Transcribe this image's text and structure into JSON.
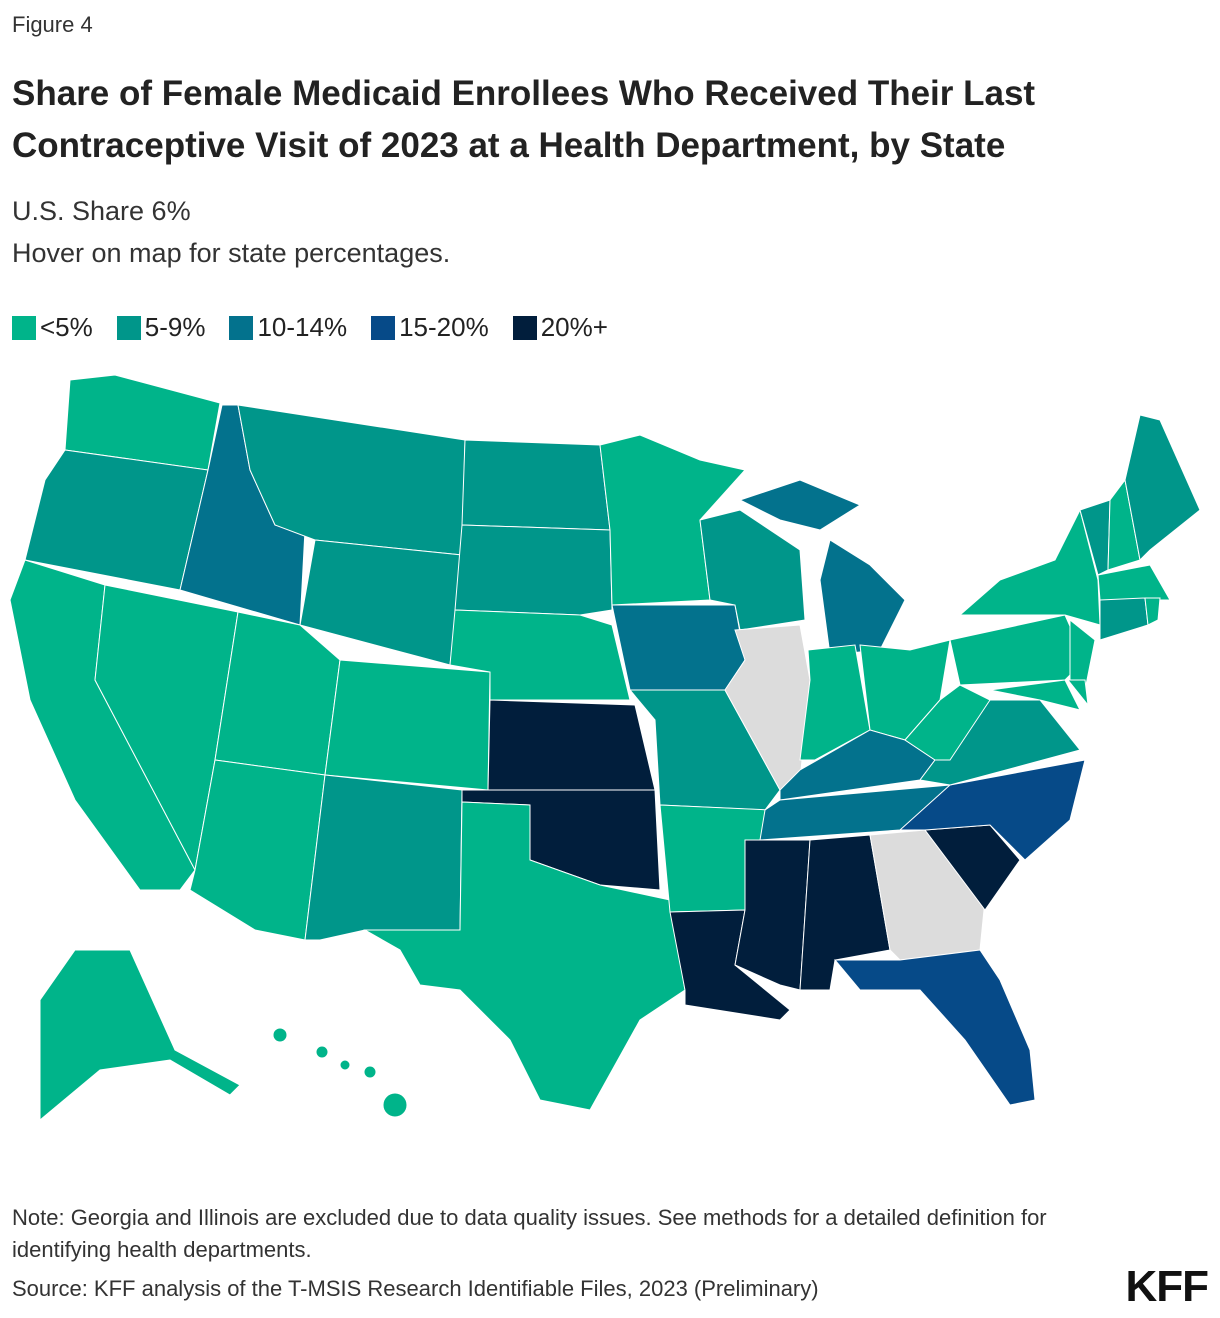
{
  "figure_label": "Figure 4",
  "title": "Share of Female Medicaid Enrollees Who Received Their Last Contraceptive Visit of 2023 at a Health Department, by State",
  "subtitle": [
    "U.S. Share 6%",
    "Hover on map for state percentages."
  ],
  "legend": [
    {
      "label": "<5%",
      "color": "#00b48a"
    },
    {
      "label": "5-9%",
      "color": "#00968a"
    },
    {
      "label": "10-14%",
      "color": "#03728d"
    },
    {
      "label": "15-20%",
      "color": "#064a88"
    },
    {
      "label": "20%+",
      "color": "#011e3c"
    }
  ],
  "note": "Note: Georgia and Illinois are excluded due to data quality issues. See methods for a detailed definition for identifying health departments.",
  "source": "Source: KFF analysis of the T-MSIS Research Identifiable Files, 2023 (Preliminary)",
  "logo": "KFF"
}
